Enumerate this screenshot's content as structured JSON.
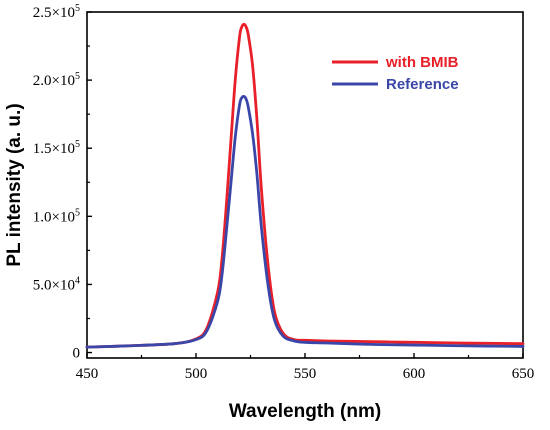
{
  "chart_data": {
    "type": "line",
    "xlabel": "Wavelength (nm)",
    "ylabel": "PL intensity (a. u.)",
    "xlim": [
      450,
      650
    ],
    "ylim": [
      -4000,
      250000
    ],
    "x_ticks": [
      450,
      500,
      550,
      600,
      650
    ],
    "x_tick_labels": [
      "450",
      "500",
      "550",
      "600",
      "650"
    ],
    "y_ticks": [
      0,
      50000,
      100000,
      150000,
      200000,
      250000
    ],
    "y_tick_labels": [
      {
        "mantissa": "0",
        "exponent": ""
      },
      {
        "mantissa": "5.0×10",
        "exponent": "4"
      },
      {
        "mantissa": "1.0×10",
        "exponent": "5"
      },
      {
        "mantissa": "1.5×10",
        "exponent": "5"
      },
      {
        "mantissa": "2.0×10",
        "exponent": "5"
      },
      {
        "mantissa": "2.5×10",
        "exponent": "5"
      }
    ],
    "legend_position": "top-right",
    "series": [
      {
        "name": "with BMIB",
        "color": "#e8202a",
        "x": [
          450,
          470,
          490,
          500,
          505,
          510,
          512,
          514,
          516,
          518,
          520,
          521,
          522,
          523,
          524,
          526,
          528,
          530,
          533,
          536,
          540,
          545,
          550,
          560,
          580,
          600,
          620,
          650
        ],
        "y": [
          4000,
          5000,
          6500,
          10000,
          18000,
          45000,
          70000,
          110000,
          155000,
          200000,
          232000,
          239000,
          241000,
          239000,
          233000,
          210000,
          170000,
          120000,
          65000,
          30000,
          14000,
          9500,
          9000,
          8500,
          8000,
          7500,
          7000,
          6500
        ]
      },
      {
        "name": "Reference",
        "color": "#3a46a8",
        "x": [
          450,
          470,
          490,
          500,
          505,
          510,
          512,
          514,
          516,
          518,
          520,
          521,
          522,
          523,
          524,
          526,
          528,
          530,
          533,
          536,
          540,
          545,
          550,
          560,
          580,
          600,
          620,
          650
        ],
        "y": [
          4000,
          5000,
          6500,
          9500,
          16000,
          38000,
          58000,
          90000,
          124000,
          158000,
          182000,
          187000,
          188000,
          186000,
          180000,
          160000,
          130000,
          92000,
          50000,
          24000,
          12000,
          8500,
          7500,
          7000,
          6000,
          5500,
          5000,
          4500
        ]
      }
    ]
  }
}
